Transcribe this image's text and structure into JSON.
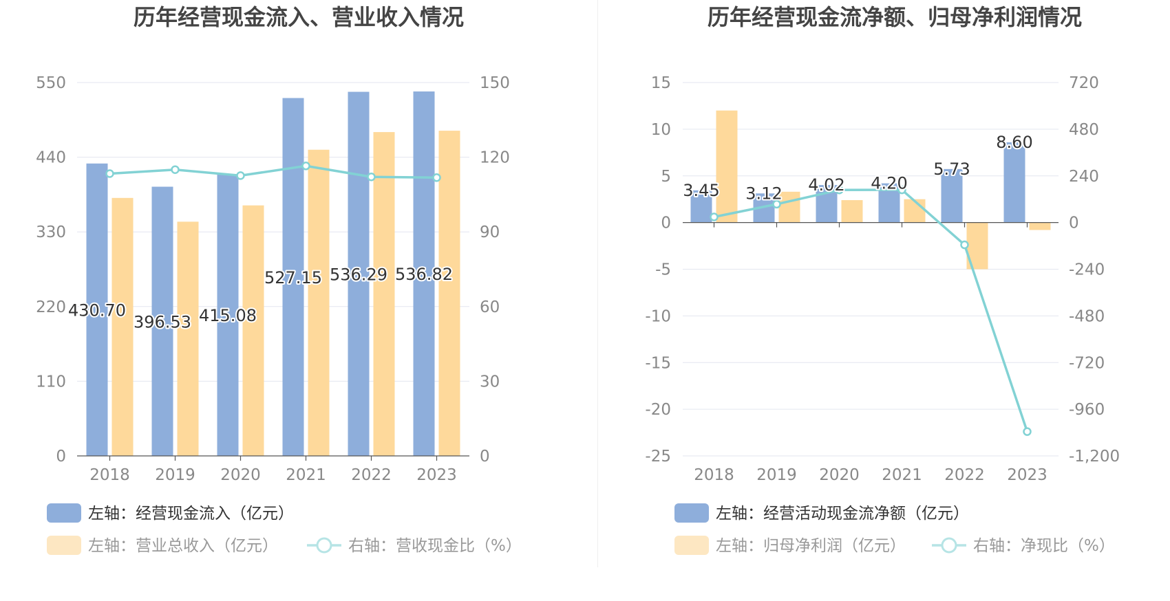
{
  "chart_data": [
    {
      "type": "bar",
      "title": "历年经营现金流入、营业收入情况",
      "categories": [
        "2018",
        "2019",
        "2020",
        "2021",
        "2022",
        "2023"
      ],
      "left_axis": {
        "min": 0,
        "max": 550,
        "ticks": [
          0,
          110,
          220,
          330,
          440,
          550
        ]
      },
      "right_axis": {
        "min": 0,
        "max": 150,
        "ticks": [
          0,
          30,
          60,
          90,
          120,
          150
        ]
      },
      "series": [
        {
          "name": "左轴：经营现金流入（亿元）",
          "type": "bar",
          "axis": "left",
          "color": "#8eaedb",
          "values": [
            430.7,
            396.53,
            415.08,
            527.15,
            536.29,
            536.82
          ],
          "labels": [
            "430.70",
            "396.53",
            "415.08",
            "527.15",
            "536.29",
            "536.82"
          ]
        },
        {
          "name": "左轴：营业总收入（亿元）",
          "type": "bar",
          "axis": "left",
          "color": "#fed99b",
          "values": [
            380,
            345,
            369,
            451,
            477,
            479
          ]
        },
        {
          "name": "右轴：营收现金比（%）",
          "type": "line",
          "axis": "right",
          "color": "#82d2d4",
          "values": [
            113.4,
            115.0,
            112.6,
            116.5,
            112.1,
            111.8
          ]
        }
      ]
    },
    {
      "type": "bar",
      "title": "历年经营现金流净额、归母净利润情况",
      "categories": [
        "2018",
        "2019",
        "2020",
        "2021",
        "2022",
        "2023"
      ],
      "left_axis": {
        "min": -25,
        "max": 15,
        "ticks": [
          -25,
          -20,
          -15,
          -10,
          -5,
          0,
          5,
          10,
          15
        ]
      },
      "right_axis": {
        "min": -1200,
        "max": 720,
        "ticks": [
          -1200,
          -960,
          -720,
          -480,
          -240,
          0,
          240,
          480,
          720
        ],
        "tick_labels": [
          "-1,200",
          "-960",
          "-720",
          "-480",
          "-240",
          "0",
          "240",
          "480",
          "720"
        ]
      },
      "series": [
        {
          "name": "左轴：经营活动现金流净额（亿元）",
          "type": "bar",
          "axis": "left",
          "color": "#8eaedb",
          "values": [
            3.45,
            3.12,
            4.02,
            4.2,
            5.73,
            8.6
          ],
          "labels": [
            "3.45",
            "3.12",
            "4.02",
            "4.20",
            "5.73",
            "8.60"
          ]
        },
        {
          "name": "左轴：归母净利润（亿元）",
          "type": "bar",
          "axis": "left",
          "color": "#fed99b",
          "values": [
            12.0,
            3.3,
            2.4,
            2.5,
            -5.0,
            -0.8
          ]
        },
        {
          "name": "右轴：净现比（%）",
          "type": "line",
          "axis": "right",
          "color": "#82d2d4",
          "values": [
            28.75,
            94.5,
            167.5,
            168.0,
            -114.6,
            -1075
          ]
        }
      ]
    }
  ]
}
